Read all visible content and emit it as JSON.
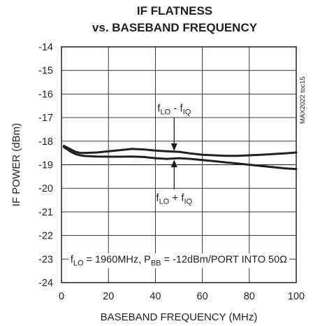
{
  "chart_data": {
    "type": "line",
    "title_line1": "IF FLATNESS",
    "title_line2": "vs. BASEBAND FREQUENCY",
    "xlabel": "BASEBAND FREQUENCY (MHz)",
    "ylabel": "IF POWER (dBm)",
    "xlim": [
      0,
      100
    ],
    "ylim": [
      -24,
      -14
    ],
    "xticks": [
      0,
      20,
      40,
      60,
      80,
      100
    ],
    "yticks": [
      -14,
      -15,
      -16,
      -17,
      -18,
      -19,
      -20,
      -21,
      -22,
      -23,
      -24
    ],
    "grid": true,
    "watermark": "MAX2022 toc15",
    "series": [
      {
        "name": "fLO - fIQ",
        "x": [
          1,
          2,
          3,
          4,
          5,
          6,
          8,
          10,
          15,
          20,
          25,
          30,
          35,
          40,
          45,
          50,
          55,
          60,
          65,
          70,
          75,
          80,
          85,
          90,
          95,
          100
        ],
        "y": [
          -18.2,
          -18.25,
          -18.3,
          -18.35,
          -18.4,
          -18.45,
          -18.5,
          -18.5,
          -18.48,
          -18.43,
          -18.38,
          -18.33,
          -18.35,
          -18.4,
          -18.43,
          -18.45,
          -18.52,
          -18.58,
          -18.6,
          -18.62,
          -18.62,
          -18.6,
          -18.58,
          -18.55,
          -18.52,
          -18.48
        ]
      },
      {
        "name": "fLO + fIQ",
        "x": [
          1,
          2,
          3,
          4,
          5,
          6,
          8,
          10,
          15,
          20,
          25,
          30,
          35,
          40,
          45,
          50,
          55,
          60,
          65,
          70,
          75,
          80,
          85,
          90,
          95,
          100
        ],
        "y": [
          -18.25,
          -18.32,
          -18.38,
          -18.45,
          -18.5,
          -18.55,
          -18.6,
          -18.63,
          -18.65,
          -18.66,
          -18.66,
          -18.65,
          -18.67,
          -18.72,
          -18.75,
          -18.72,
          -18.75,
          -18.8,
          -18.85,
          -18.9,
          -18.95,
          -19.0,
          -19.05,
          -19.1,
          -19.15,
          -19.18
        ]
      }
    ],
    "annotations": {
      "upper": {
        "base": "f",
        "sub1": "LO",
        "mid": " - f",
        "sub2": "IQ",
        "x": 48,
        "label_y": -16.75,
        "arrow_to": -18.42
      },
      "lower": {
        "base": "f",
        "sub1": "LO",
        "mid": " + f",
        "sub2": "IQ",
        "x": 48,
        "label_y": -20.55,
        "arrow_to": -18.78
      },
      "condition": {
        "p1": "f",
        "s1": "LO",
        "p2": " = 1960MHz, P",
        "s2": "BB",
        "p3": " = -12dBm/PORT INTO 50Ω"
      }
    }
  }
}
